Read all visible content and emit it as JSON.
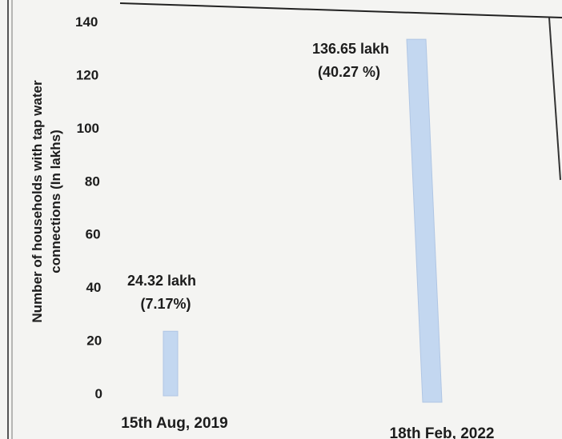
{
  "chart_data": {
    "type": "bar",
    "title": "",
    "xlabel": "",
    "ylabel_lines": [
      "Number of households with tap water",
      "connections  (In lakhs)"
    ],
    "ylim": [
      0,
      140
    ],
    "yticks": [
      0,
      20,
      40,
      60,
      80,
      100,
      120,
      140
    ],
    "categories": [
      "15th Aug, 2019",
      "18th Feb, 2022"
    ],
    "values": [
      24.32,
      136.65
    ],
    "data_labels": [
      [
        "24.32 lakh",
        "(7.17%)"
      ],
      [
        "136.65 lakh",
        "(40.27 %)"
      ]
    ],
    "bar_color": "#c3d7f0",
    "grid": false,
    "legend": "none"
  }
}
